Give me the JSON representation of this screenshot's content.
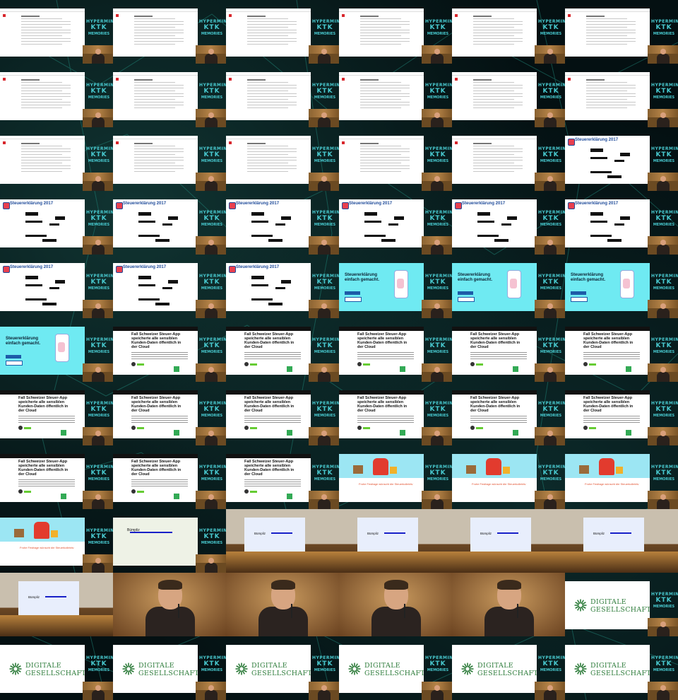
{
  "sheet": {
    "columns": 6,
    "rows": 11,
    "background_color": "#041012"
  },
  "watermark": {
    "line1": "HYPERMINE",
    "line2": "KTK",
    "line3": "MEMORIES",
    "color": "#48c8ce"
  },
  "slide_texts": {
    "tax_title": "Steuererklärung 2017",
    "cyan_title": "Steuererklärung einfach gemacht.",
    "article_headline": "Fall Schweizer Steuer-App speicherte alle sensiblen Kunden-Daten öffentlich in der Cloud",
    "xmas_caption": "Frohe Festtage wünscht die Steuerkollektiv",
    "map_label": "Bümpliz",
    "logo_word1": "DIGITALE",
    "logo_word2": "GESELLSCHAFT"
  },
  "frames": [
    "doc",
    "doc",
    "doc",
    "doc",
    "doc",
    "doc",
    "doc",
    "doc",
    "doc",
    "doc",
    "doc",
    "doc",
    "doc",
    "doc",
    "doc",
    "doc",
    "doc",
    "tax",
    "tax",
    "tax",
    "tax",
    "tax",
    "tax",
    "tax",
    "tax",
    "tax",
    "tax",
    "cyan",
    "cyan",
    "cyan",
    "cyan",
    "article",
    "article",
    "article",
    "article",
    "article",
    "article",
    "article",
    "article",
    "article",
    "article",
    "article",
    "article",
    "article",
    "article",
    "xmas",
    "xmas",
    "xmas",
    "xmas",
    "map",
    "stage",
    "stage",
    "stage",
    "stage",
    "stage",
    "closeup",
    "closeup",
    "closeup",
    "closeup",
    "logo",
    "logo",
    "logo",
    "logo",
    "logo",
    "logo",
    "logo"
  ]
}
